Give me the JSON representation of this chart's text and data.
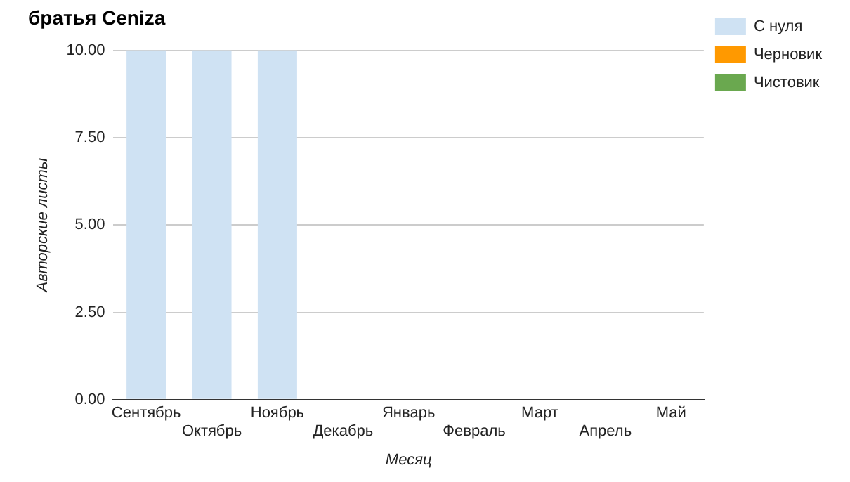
{
  "chart_data": {
    "type": "bar",
    "title": "братья Ceniza",
    "xlabel": "Месяц",
    "ylabel": "Авторские листы",
    "stacked": true,
    "categories": [
      "Сентябрь",
      "Октябрь",
      "Ноябрь",
      "Декабрь",
      "Январь",
      "Февраль",
      "Март",
      "Апрель",
      "Май"
    ],
    "series": [
      {
        "name": "С нуля",
        "color": "#cfe2f3",
        "values": [
          10,
          10,
          10,
          0,
          0,
          0,
          0,
          0,
          0
        ]
      },
      {
        "name": "Черновик",
        "color": "#ff9900",
        "values": [
          0,
          0,
          0,
          0,
          0,
          0,
          0,
          0,
          0
        ]
      },
      {
        "name": "Чистовик",
        "color": "#6aa84f",
        "values": [
          0,
          0,
          0,
          0,
          0,
          0,
          0,
          0,
          0
        ]
      }
    ],
    "ylim": [
      0,
      10
    ],
    "yticks": [
      {
        "value": 0,
        "label": "0.00"
      },
      {
        "value": 2.5,
        "label": "2.50"
      },
      {
        "value": 5,
        "label": "5.00"
      },
      {
        "value": 7.5,
        "label": "7.50"
      },
      {
        "value": 10,
        "label": "10.00"
      }
    ],
    "grid": "y",
    "legend": "right"
  }
}
